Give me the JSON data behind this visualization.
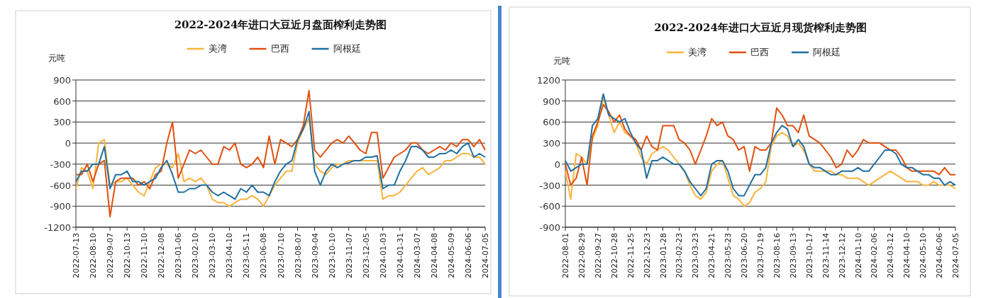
{
  "chart_data": [
    {
      "type": "line",
      "title": "2022-2024年进口大豆近月盘面榨利走势图",
      "ylabel": "元吨",
      "legend": "top",
      "grid": "y",
      "categories": [
        "2022-07-13",
        null,
        null,
        "2022-08-10",
        null,
        null,
        "2022-09-07",
        null,
        null,
        "2022-10-13",
        null,
        null,
        "2022-11-10",
        null,
        null,
        "2022-12-08",
        null,
        null,
        "2023-01-06",
        null,
        null,
        "2023-02-10",
        null,
        null,
        "2023-03-10",
        null,
        null,
        "2023-04-10",
        null,
        null,
        "2023-05-11",
        null,
        null,
        "2023-06-08",
        null,
        null,
        "2023-07-10",
        null,
        null,
        "2023-08-07",
        null,
        null,
        "2023-09-04",
        null,
        null,
        "2023-10-10",
        null,
        null,
        "2023-11-07",
        null,
        null,
        "2023-12-05",
        null,
        null,
        "2024-01-03",
        null,
        null,
        "2024-01-31",
        null,
        null,
        "2024-03-07",
        null,
        null,
        "2024-04-08",
        null,
        null,
        "2024-05-09",
        null,
        null,
        "2024-06-06",
        null,
        null,
        "2024-07-05"
      ],
      "ylim": [
        -1200,
        900
      ],
      "yticks": [
        -1200,
        -900,
        -600,
        -300,
        0,
        300,
        600,
        900
      ],
      "series": [
        {
          "name": "美湾",
          "color": "#f9b33b",
          "values": [
            -650,
            -350,
            -400,
            -650,
            0,
            50,
            -600,
            -550,
            -550,
            -500,
            -600,
            -700,
            -750,
            -550,
            -350,
            -300,
            -300,
            -350,
            -150,
            -550,
            -500,
            -550,
            -500,
            -600,
            -800,
            -850,
            -850,
            -900,
            -850,
            -800,
            -800,
            -750,
            -800,
            -900,
            -750,
            -600,
            -500,
            -400,
            -400,
            0,
            200,
            350,
            -300,
            -400,
            -450,
            -350,
            -300,
            -300,
            -250,
            -250,
            -250,
            -250,
            -250,
            -250,
            -800,
            -750,
            -750,
            -700,
            -600,
            -500,
            -400,
            -350,
            -450,
            -400,
            -350,
            -250,
            -250,
            -200,
            -150,
            -150,
            -200,
            -200,
            -300
          ]
        },
        {
          "name": "巴西",
          "color": "#e0500f",
          "values": [
            -450,
            -450,
            -300,
            -550,
            -300,
            -250,
            -1050,
            -550,
            -500,
            -500,
            -500,
            -600,
            -550,
            -650,
            -450,
            -400,
            0,
            300,
            -500,
            -300,
            -100,
            -150,
            -100,
            -200,
            -300,
            -300,
            -50,
            -100,
            0,
            -300,
            -350,
            -300,
            -200,
            -350,
            100,
            -300,
            50,
            0,
            -50,
            50,
            250,
            750,
            -100,
            -200,
            -100,
            0,
            50,
            0,
            100,
            0,
            -100,
            -150,
            150,
            150,
            -500,
            -350,
            -200,
            -150,
            -100,
            0,
            0,
            -100,
            -150,
            -100,
            -50,
            -100,
            0,
            -50,
            50,
            50,
            -50,
            50,
            -100
          ]
        },
        {
          "name": "阿根廷",
          "color": "#1f6ea3",
          "values": [
            -550,
            -400,
            -400,
            -300,
            -300,
            -50,
            -650,
            -450,
            -450,
            -400,
            -550,
            -550,
            -600,
            -550,
            -500,
            -350,
            -250,
            -450,
            -700,
            -700,
            -650,
            -650,
            -600,
            -600,
            -700,
            -750,
            -700,
            -750,
            -800,
            -650,
            -700,
            -600,
            -700,
            -700,
            -750,
            -550,
            -400,
            -300,
            -250,
            50,
            200,
            450,
            -400,
            -600,
            -400,
            -300,
            -350,
            -300,
            -280,
            -250,
            -250,
            -200,
            -200,
            -180,
            -650,
            -600,
            -600,
            -400,
            -250,
            -50,
            -50,
            -100,
            -200,
            -200,
            -150,
            -150,
            -100,
            -150,
            -50,
            0,
            -200,
            -150,
            -200
          ]
        }
      ]
    },
    {
      "type": "line",
      "title": "2022-2024年进口大豆近月现货榨利走势图",
      "ylabel": "元吨",
      "legend": "top",
      "grid": "y",
      "categories": [
        "2022-08-01",
        null,
        null,
        "2022-08-29",
        null,
        null,
        "2022-09-27",
        null,
        null,
        "2022-10-28",
        null,
        null,
        "2022-11-25",
        null,
        null,
        "2022-12-23",
        null,
        null,
        "2023-01-28",
        null,
        null,
        "2023-02-23",
        null,
        null,
        "2023-03-23",
        null,
        null,
        "2023-04-21",
        null,
        null,
        "2023-05-23",
        null,
        null,
        "2023-06-20",
        null,
        null,
        "2023-07-19",
        null,
        null,
        "2023-08-16",
        null,
        null,
        "2023-09-13",
        null,
        null,
        "2023-10-17",
        null,
        null,
        "2023-11-14",
        null,
        null,
        "2023-12-12",
        null,
        null,
        "2024-01-10",
        null,
        null,
        "2024-02-06",
        null,
        null,
        "2024-03-12",
        null,
        null,
        "2024-04-10",
        null,
        null,
        "2024-05-10",
        null,
        null,
        "2024-06-06",
        null,
        null,
        "2024-07-05"
      ],
      "ylim": [
        -900,
        1200
      ],
      "yticks": [
        -900,
        -600,
        -300,
        0,
        300,
        600,
        900,
        1200
      ],
      "series": [
        {
          "name": "美湾",
          "color": "#f9b33b",
          "values": [
            -100,
            -500,
            150,
            100,
            0,
            350,
            550,
            950,
            700,
            450,
            600,
            450,
            400,
            300,
            100,
            0,
            150,
            200,
            250,
            200,
            100,
            0,
            -100,
            -300,
            -450,
            -500,
            -400,
            -100,
            0,
            50,
            -200,
            -450,
            -500,
            -600,
            -550,
            -400,
            -350,
            -250,
            250,
            400,
            450,
            400,
            250,
            300,
            200,
            0,
            -100,
            -100,
            -100,
            -100,
            -150,
            -150,
            -200,
            -200,
            -200,
            -250,
            -300,
            -250,
            -200,
            -150,
            -100,
            -150,
            -200,
            -250,
            -250,
            -250,
            -300,
            -300,
            -250,
            -300,
            -300,
            -300,
            -350
          ]
        },
        {
          "name": "巴西",
          "color": "#e0500f",
          "values": [
            0,
            -300,
            -200,
            100,
            -300,
            400,
            600,
            850,
            750,
            600,
            700,
            500,
            400,
            350,
            200,
            400,
            250,
            200,
            550,
            550,
            550,
            350,
            300,
            200,
            0,
            200,
            400,
            650,
            550,
            600,
            400,
            350,
            200,
            250,
            -100,
            250,
            200,
            200,
            300,
            800,
            700,
            550,
            550,
            450,
            700,
            400,
            350,
            300,
            200,
            100,
            -50,
            0,
            200,
            100,
            200,
            350,
            300,
            300,
            300,
            250,
            200,
            200,
            100,
            -50,
            -100,
            -100,
            -100,
            -100,
            -100,
            -150,
            -50,
            -150,
            -150
          ]
        },
        {
          "name": "阿根廷",
          "color": "#1f6ea3",
          "values": [
            50,
            -100,
            -50,
            0,
            0,
            550,
            650,
            1000,
            700,
            650,
            600,
            650,
            450,
            300,
            200,
            -200,
            50,
            50,
            100,
            50,
            0,
            0,
            -100,
            -250,
            -350,
            -450,
            -350,
            0,
            50,
            50,
            -100,
            -350,
            -450,
            -450,
            -300,
            -150,
            -150,
            -50,
            300,
            450,
            550,
            500,
            250,
            350,
            250,
            0,
            -50,
            -50,
            -100,
            -150,
            -150,
            -100,
            -100,
            -100,
            -50,
            -100,
            -100,
            0,
            100,
            200,
            200,
            150,
            0,
            -50,
            -50,
            -100,
            -150,
            -150,
            -200,
            -200,
            -300,
            -250,
            -300
          ]
        }
      ]
    }
  ]
}
